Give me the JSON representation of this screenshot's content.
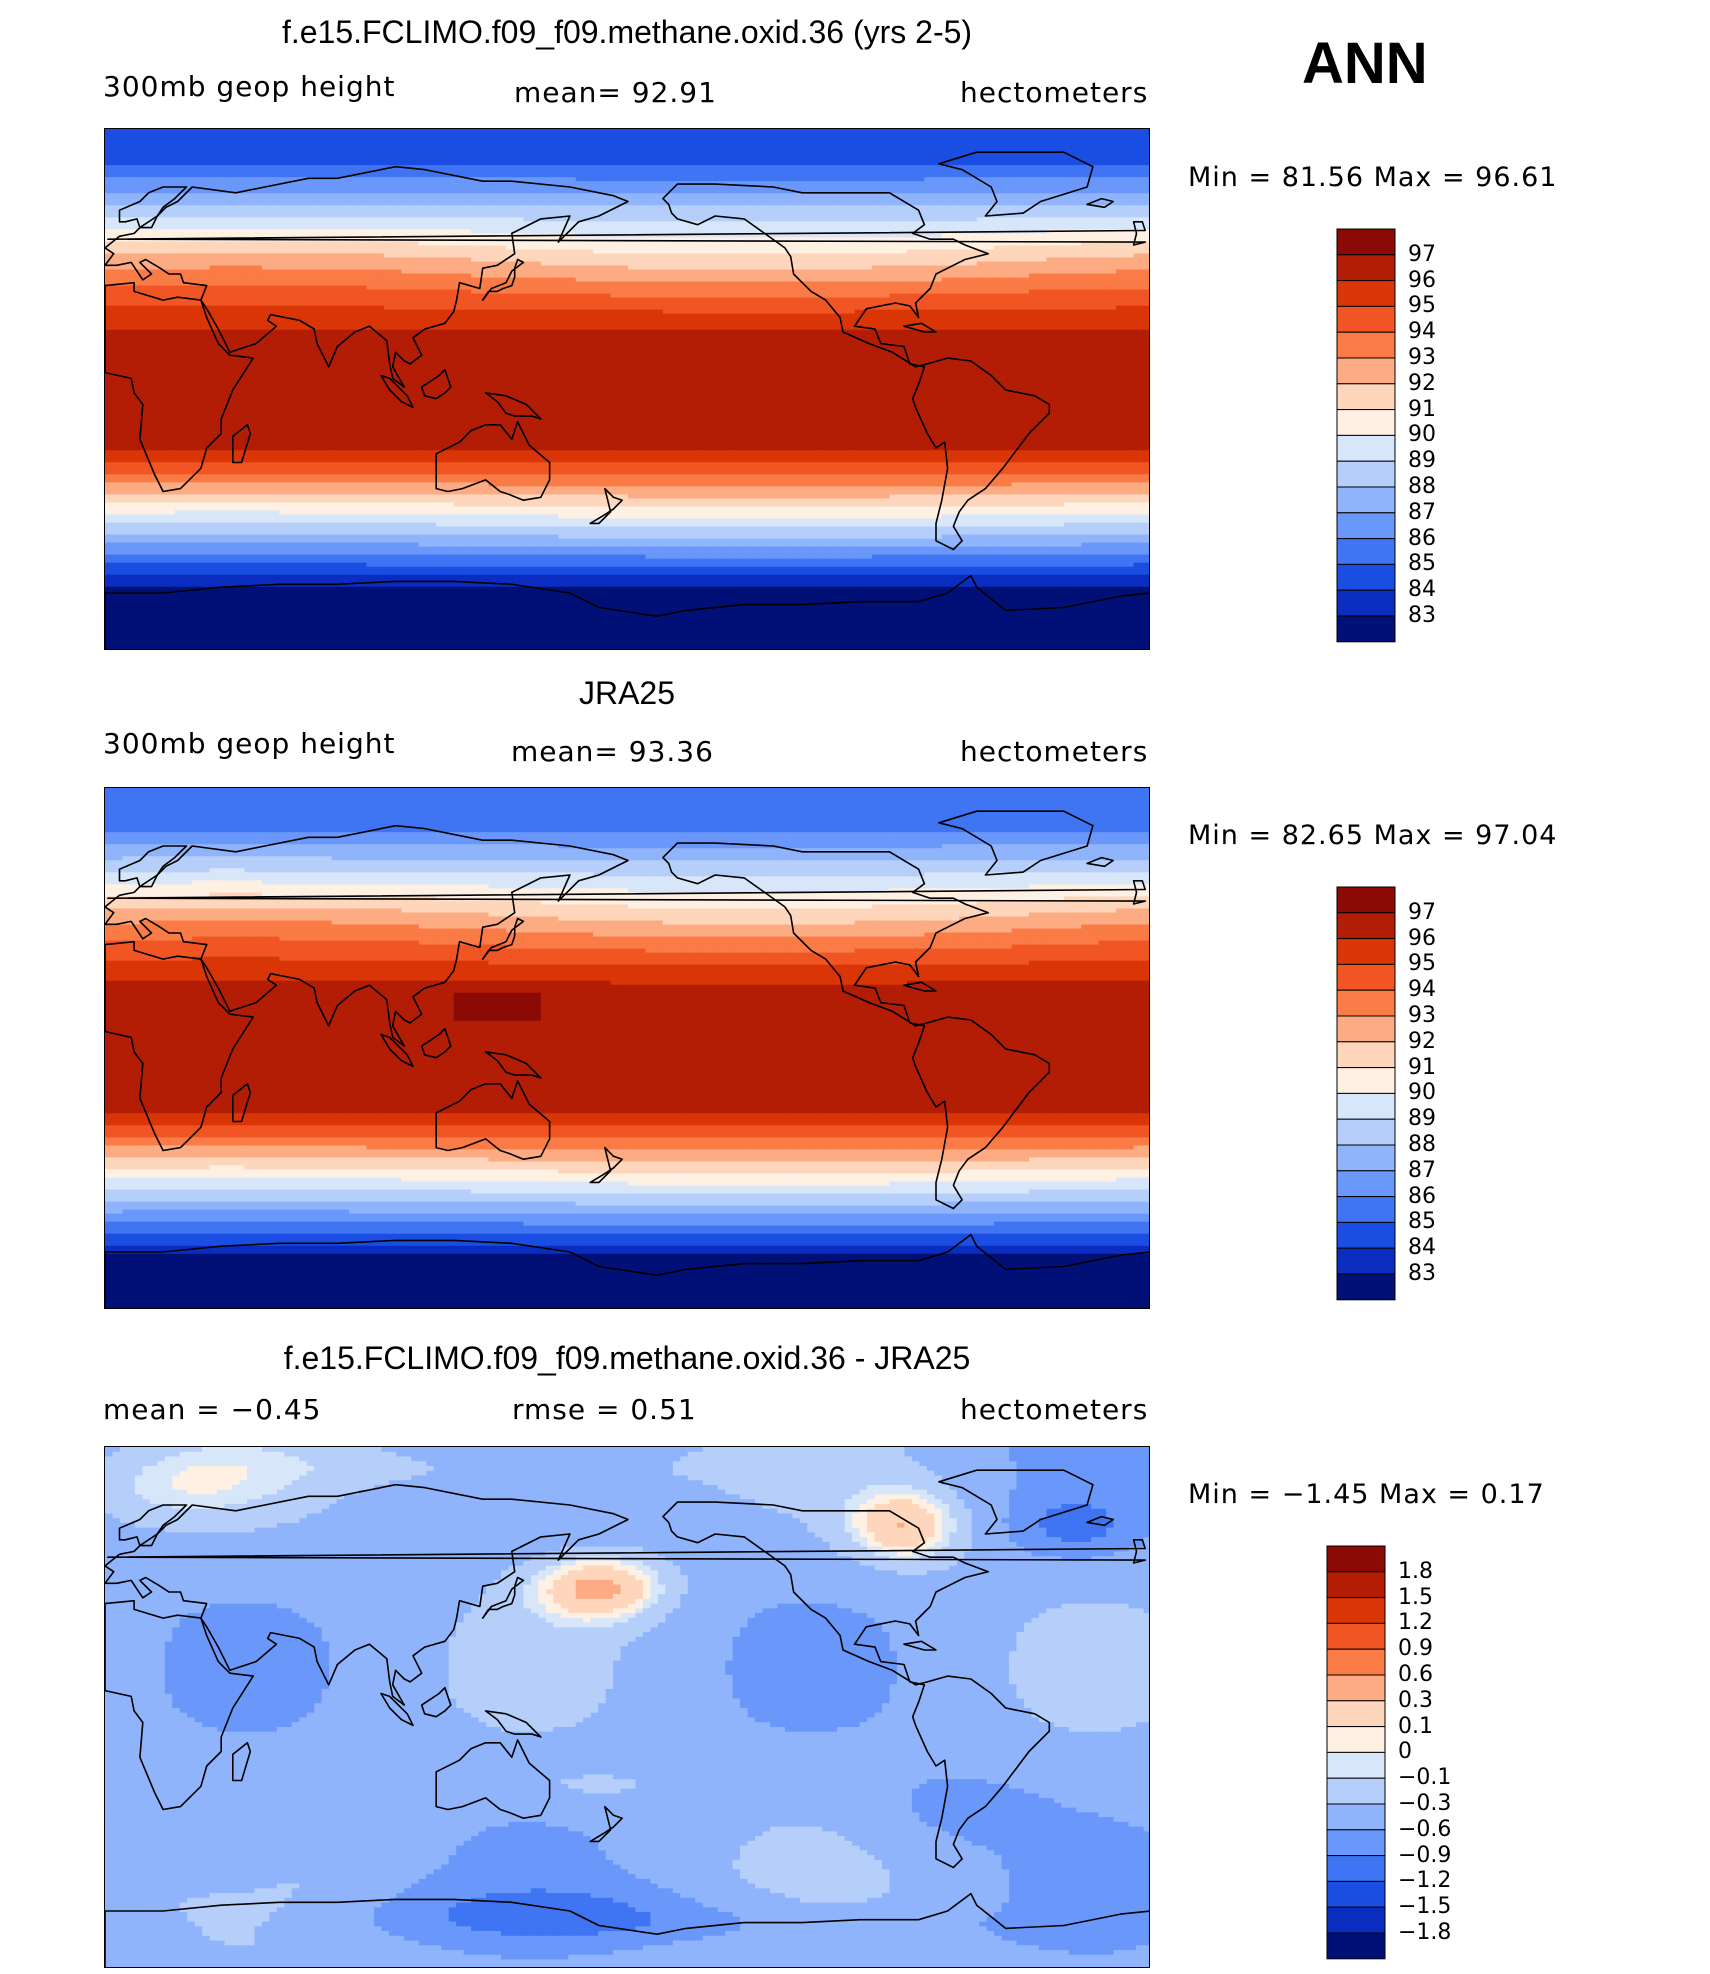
{
  "season": "ANN",
  "panels": [
    {
      "title": "f.e15.FCLIMO.f09_f09.methane.oxid.36 (yrs 2-5)",
      "left": "300mb  geop  height",
      "center": "mean=   92.91",
      "right": "hectometers",
      "minmax": "Min =   81.56  Max =   96.61",
      "colorbar_labels": [
        "97",
        "96",
        "95",
        "94",
        "93",
        "92",
        "91",
        "90",
        "89",
        "88",
        "87",
        "86",
        "85",
        "84",
        "83"
      ],
      "colorbar_colors": [
        "#8b0a05",
        "#b31d05",
        "#d93506",
        "#f05523",
        "#fa7b45",
        "#fcab82",
        "#fdd6bc",
        "#fef1e4",
        "#d8e6f9",
        "#b5cffa",
        "#8fb4fb",
        "#6a98fa",
        "#3f75f3",
        "#1a4ee3",
        "#0a2dc0",
        "#001077"
      ],
      "field": {
        "equator_value": 96.3,
        "nh_pole_value": 84.8,
        "sh_pole_value": 81.6,
        "min": 81.56,
        "max": 96.61
      }
    },
    {
      "title": "JRA25",
      "left": "300mb  geop  height",
      "center": "mean=   93.36",
      "right": "hectometers",
      "minmax": "Min =   82.65  Max =   97.04",
      "colorbar_labels": [
        "97",
        "96",
        "95",
        "94",
        "93",
        "92",
        "91",
        "90",
        "89",
        "88",
        "87",
        "86",
        "85",
        "84",
        "83"
      ],
      "colorbar_colors": [
        "#8b0a05",
        "#b31d05",
        "#d93506",
        "#f05523",
        "#fa7b45",
        "#fcab82",
        "#fdd6bc",
        "#fef1e4",
        "#d8e6f9",
        "#b5cffa",
        "#8fb4fb",
        "#6a98fa",
        "#3f75f3",
        "#1a4ee3",
        "#0a2dc0",
        "#001077"
      ],
      "field": {
        "equator_value": 96.6,
        "nh_pole_value": 85.2,
        "sh_pole_value": 82.7,
        "min": 82.65,
        "max": 97.04
      }
    },
    {
      "title": "f.e15.FCLIMO.f09_f09.methane.oxid.36 - JRA25",
      "left": "mean  =    −0.45",
      "center": "rmse  =     0.51",
      "right": "hectometers",
      "minmax": "Min =   −1.45  Max =     0.17",
      "colorbar_labels": [
        "1.8",
        "1.5",
        "1.2",
        "0.9",
        "0.6",
        "0.3",
        "0.1",
        "0",
        "−0.1",
        "−0.3",
        "−0.6",
        "−0.9",
        "−1.2",
        "−1.5",
        "−1.8"
      ],
      "colorbar_colors": [
        "#8b0a05",
        "#b31d05",
        "#d93506",
        "#f05523",
        "#fa7b45",
        "#fcab82",
        "#fdd6bc",
        "#fef1e4",
        "#d8e6f9",
        "#b5cffa",
        "#8fb4fb",
        "#6a98fa",
        "#3f75f3",
        "#1a4ee3",
        "#0a2dc0",
        "#001077"
      ],
      "field": {
        "mean": -0.45,
        "min": -1.45,
        "max": 0.17
      }
    }
  ]
}
